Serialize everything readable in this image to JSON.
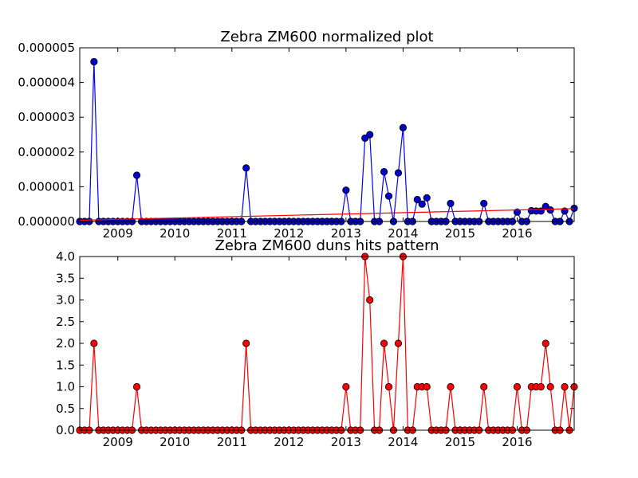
{
  "colors": {
    "top_series": "#0000ff",
    "top_marker": "#0000cc",
    "bottom_series": "#ff0000",
    "trend": "#ff0000"
  },
  "chart_data": [
    {
      "type": "line",
      "title": "Zebra ZM600 normalized plot",
      "xlabel": "",
      "ylabel": "",
      "x_tick_labels": [
        "2009",
        "2010",
        "2011",
        "2012",
        "2013",
        "2014",
        "2015",
        "2016"
      ],
      "y_tick_labels": [
        "0.000000",
        "0.000001",
        "0.000002",
        "0.000003",
        "0.000004",
        "0.000005"
      ],
      "xlim": [
        2008.333,
        2017.0
      ],
      "ylim": [
        0,
        5e-06
      ],
      "grid": false,
      "series": [
        {
          "marker": "circle",
          "x": [
            2008.333,
            2008.417,
            2008.5,
            2008.583,
            2008.667,
            2008.75,
            2008.833,
            2008.917,
            2009.0,
            2009.083,
            2009.167,
            2009.25,
            2009.333,
            2009.417,
            2009.5,
            2009.583,
            2009.667,
            2009.75,
            2009.833,
            2009.917,
            2010.0,
            2010.083,
            2010.167,
            2010.25,
            2010.333,
            2010.417,
            2010.5,
            2010.583,
            2010.667,
            2010.75,
            2010.833,
            2010.917,
            2011.0,
            2011.083,
            2011.167,
            2011.25,
            2011.333,
            2011.417,
            2011.5,
            2011.583,
            2011.667,
            2011.75,
            2011.833,
            2011.917,
            2012.0,
            2012.083,
            2012.167,
            2012.25,
            2012.333,
            2012.417,
            2012.5,
            2012.583,
            2012.667,
            2012.75,
            2012.833,
            2012.917,
            2013.0,
            2013.083,
            2013.167,
            2013.25,
            2013.333,
            2013.417,
            2013.5,
            2013.583,
            2013.667,
            2013.75,
            2013.833,
            2013.917,
            2014.0,
            2014.083,
            2014.167,
            2014.25,
            2014.333,
            2014.417,
            2014.5,
            2014.583,
            2014.667,
            2014.75,
            2014.833,
            2014.917,
            2015.0,
            2015.083,
            2015.167,
            2015.25,
            2015.333,
            2015.417,
            2015.5,
            2015.583,
            2015.667,
            2015.75,
            2015.833,
            2015.917,
            2016.0,
            2016.083,
            2016.167,
            2016.25,
            2016.333,
            2016.417,
            2016.5,
            2016.583,
            2016.667,
            2016.75,
            2016.833,
            2016.917,
            2017.0
          ],
          "y": [
            0,
            0,
            0,
            4.6e-06,
            0,
            0,
            0,
            0,
            0,
            0,
            0,
            0,
            1.33e-06,
            0,
            0,
            0,
            0,
            0,
            0,
            0,
            0,
            0,
            0,
            0,
            0,
            0,
            0,
            0,
            0,
            0,
            0,
            0,
            0,
            0,
            0,
            1.54e-06,
            0,
            0,
            0,
            0,
            0,
            0,
            0,
            0,
            0,
            0,
            0,
            0,
            0,
            0,
            0,
            0,
            0,
            0,
            0,
            0,
            9e-07,
            0,
            0,
            0,
            2.4e-06,
            2.5e-06,
            0,
            0,
            1.43e-06,
            7.3e-07,
            0,
            1.4e-06,
            2.7e-06,
            0,
            0,
            6.3e-07,
            5e-07,
            6.8e-07,
            0,
            0,
            0,
            0,
            5.2e-07,
            0,
            0,
            0,
            0,
            0,
            0,
            5.2e-07,
            0,
            0,
            0,
            0,
            0,
            0,
            2.7e-07,
            0,
            0,
            3.1e-07,
            3e-07,
            3e-07,
            4.3e-07,
            3.3e-07,
            0,
            0,
            3e-07,
            0,
            3.8e-07
          ]
        },
        {
          "marker": "none",
          "x": [
            2008.333,
            2017.0
          ],
          "y": [
            3.5e-08,
            3.7e-07
          ]
        }
      ]
    },
    {
      "type": "line",
      "title": "Zebra ZM600 duns hits pattern",
      "xlabel": "",
      "ylabel": "",
      "x_tick_labels": [
        "2009",
        "2010",
        "2011",
        "2012",
        "2013",
        "2014",
        "2015",
        "2016"
      ],
      "y_tick_labels": [
        "0.0",
        "0.5",
        "1.0",
        "1.5",
        "2.0",
        "2.5",
        "3.0",
        "3.5",
        "4.0"
      ],
      "xlim": [
        2008.333,
        2017.0
      ],
      "ylim": [
        0,
        4
      ],
      "grid": false,
      "series": [
        {
          "marker": "circle",
          "x": [
            2008.333,
            2008.417,
            2008.5,
            2008.583,
            2008.667,
            2008.75,
            2008.833,
            2008.917,
            2009.0,
            2009.083,
            2009.167,
            2009.25,
            2009.333,
            2009.417,
            2009.5,
            2009.583,
            2009.667,
            2009.75,
            2009.833,
            2009.917,
            2010.0,
            2010.083,
            2010.167,
            2010.25,
            2010.333,
            2010.417,
            2010.5,
            2010.583,
            2010.667,
            2010.75,
            2010.833,
            2010.917,
            2011.0,
            2011.083,
            2011.167,
            2011.25,
            2011.333,
            2011.417,
            2011.5,
            2011.583,
            2011.667,
            2011.75,
            2011.833,
            2011.917,
            2012.0,
            2012.083,
            2012.167,
            2012.25,
            2012.333,
            2012.417,
            2012.5,
            2012.583,
            2012.667,
            2012.75,
            2012.833,
            2012.917,
            2013.0,
            2013.083,
            2013.167,
            2013.25,
            2013.333,
            2013.417,
            2013.5,
            2013.583,
            2013.667,
            2013.75,
            2013.833,
            2013.917,
            2014.0,
            2014.083,
            2014.167,
            2014.25,
            2014.333,
            2014.417,
            2014.5,
            2014.583,
            2014.667,
            2014.75,
            2014.833,
            2014.917,
            2015.0,
            2015.083,
            2015.167,
            2015.25,
            2015.333,
            2015.417,
            2015.5,
            2015.583,
            2015.667,
            2015.75,
            2015.833,
            2015.917,
            2016.0,
            2016.083,
            2016.167,
            2016.25,
            2016.333,
            2016.417,
            2016.5,
            2016.583,
            2016.667,
            2016.75,
            2016.833,
            2016.917,
            2017.0
          ],
          "y": [
            0,
            0,
            0,
            2,
            0,
            0,
            0,
            0,
            0,
            0,
            0,
            0,
            1,
            0,
            0,
            0,
            0,
            0,
            0,
            0,
            0,
            0,
            0,
            0,
            0,
            0,
            0,
            0,
            0,
            0,
            0,
            0,
            0,
            0,
            0,
            2,
            0,
            0,
            0,
            0,
            0,
            0,
            0,
            0,
            0,
            0,
            0,
            0,
            0,
            0,
            0,
            0,
            0,
            0,
            0,
            0,
            1,
            0,
            0,
            0,
            4,
            3,
            0,
            0,
            2,
            1,
            0,
            2,
            4,
            0,
            0,
            1,
            1,
            1,
            0,
            0,
            0,
            0,
            1,
            0,
            0,
            0,
            0,
            0,
            0,
            1,
            0,
            0,
            0,
            0,
            0,
            0,
            1,
            0,
            0,
            1,
            1,
            1,
            2,
            1,
            0,
            0,
            1,
            0,
            1
          ]
        }
      ]
    }
  ]
}
